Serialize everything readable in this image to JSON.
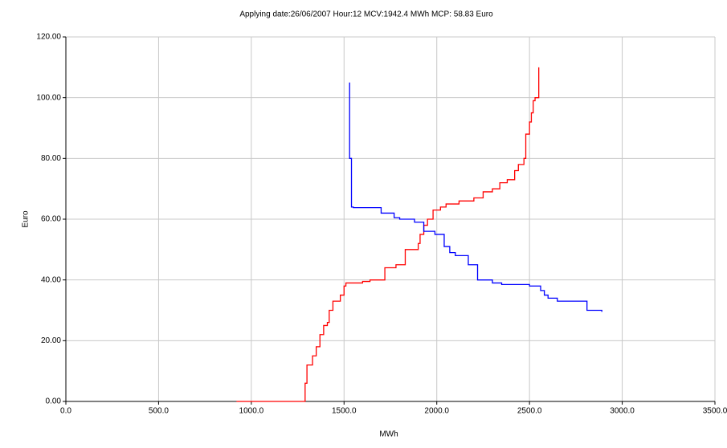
{
  "chart_data": {
    "type": "line",
    "title": "Applying date:26/06/2007  Hour:12  MCV:1942.4 MWh  MCP: 58.83 Euro",
    "x_label": "MWh",
    "y_label": "Euro",
    "grid": true,
    "xlim": [
      0,
      3500
    ],
    "xticks": [
      {
        "value": 0,
        "label": "0.0"
      },
      {
        "value": 500,
        "label": "500.0"
      },
      {
        "value": 1000,
        "label": "1000.0"
      },
      {
        "value": 1500,
        "label": "1500.0"
      },
      {
        "value": 2000,
        "label": "2000.0"
      },
      {
        "value": 2500,
        "label": "2500.0"
      },
      {
        "value": 3000,
        "label": "3000.0"
      },
      {
        "value": 3500,
        "label": "3500.0"
      }
    ],
    "ylim": [
      0,
      120
    ],
    "yticks": [
      {
        "value": 0,
        "label": "0.00"
      },
      {
        "value": 20,
        "label": "20.00"
      },
      {
        "value": 40,
        "label": "40.00"
      },
      {
        "value": 60,
        "label": "60.00"
      },
      {
        "value": 80,
        "label": "80.00"
      },
      {
        "value": 100,
        "label": "100.00"
      },
      {
        "value": 120,
        "label": "120.00"
      }
    ],
    "series": [
      {
        "color": "#ff0000",
        "x": [
          920,
          1290,
          1290,
          1300,
          1300,
          1330,
          1330,
          1350,
          1350,
          1370,
          1370,
          1390,
          1390,
          1410,
          1410,
          1420,
          1420,
          1440,
          1440,
          1480,
          1480,
          1500,
          1500,
          1510,
          1510,
          1600,
          1600,
          1640,
          1640,
          1720,
          1720,
          1780,
          1780,
          1830,
          1830,
          1900,
          1900,
          1910,
          1910,
          1930,
          1930,
          1950,
          1950,
          1980,
          1980,
          2020,
          2020,
          2050,
          2050,
          2120,
          2120,
          2200,
          2200,
          2250,
          2250,
          2300,
          2300,
          2340,
          2340,
          2380,
          2380,
          2420,
          2420,
          2440,
          2440,
          2470,
          2470,
          2480,
          2480,
          2500,
          2500,
          2510,
          2510,
          2520,
          2520,
          2530,
          2530,
          2550,
          2550
        ],
        "values": [
          0,
          0,
          6,
          6,
          12,
          12,
          15,
          15,
          18,
          18,
          22,
          22,
          25,
          25,
          26,
          26,
          30,
          30,
          33,
          33,
          35,
          35,
          38,
          38,
          39,
          39,
          39.5,
          39.5,
          40,
          40,
          44,
          44,
          45,
          45,
          50,
          50,
          52,
          52,
          55,
          55,
          58,
          58,
          60,
          60,
          63,
          63,
          64,
          64,
          65,
          65,
          66,
          66,
          67,
          67,
          69,
          69,
          70,
          70,
          72,
          72,
          73,
          73,
          76,
          76,
          78,
          78,
          80,
          80,
          88,
          88,
          92,
          92,
          95,
          95,
          99,
          99,
          100,
          100,
          110
        ]
      },
      {
        "color": "#0000ff",
        "x": [
          1530,
          1530,
          1540,
          1540,
          1550,
          1550,
          1700,
          1700,
          1770,
          1770,
          1800,
          1800,
          1880,
          1880,
          1930,
          1930,
          1990,
          1990,
          2040,
          2040,
          2070,
          2070,
          2100,
          2100,
          2170,
          2170,
          2220,
          2220,
          2300,
          2300,
          2350,
          2350,
          2500,
          2500,
          2560,
          2560,
          2580,
          2580,
          2600,
          2600,
          2650,
          2650,
          2810,
          2810,
          2890,
          2890
        ],
        "values": [
          105,
          80,
          80,
          64,
          64,
          63.8,
          63.8,
          62,
          62,
          60.5,
          60.5,
          60,
          60,
          59,
          59,
          56,
          56,
          55,
          55,
          51,
          51,
          49,
          49,
          48,
          48,
          45,
          45,
          40,
          40,
          39,
          39,
          38.5,
          38.5,
          38,
          38,
          36.5,
          36.5,
          35,
          35,
          34,
          34,
          33,
          33,
          30,
          30,
          29.5
        ]
      }
    ]
  }
}
